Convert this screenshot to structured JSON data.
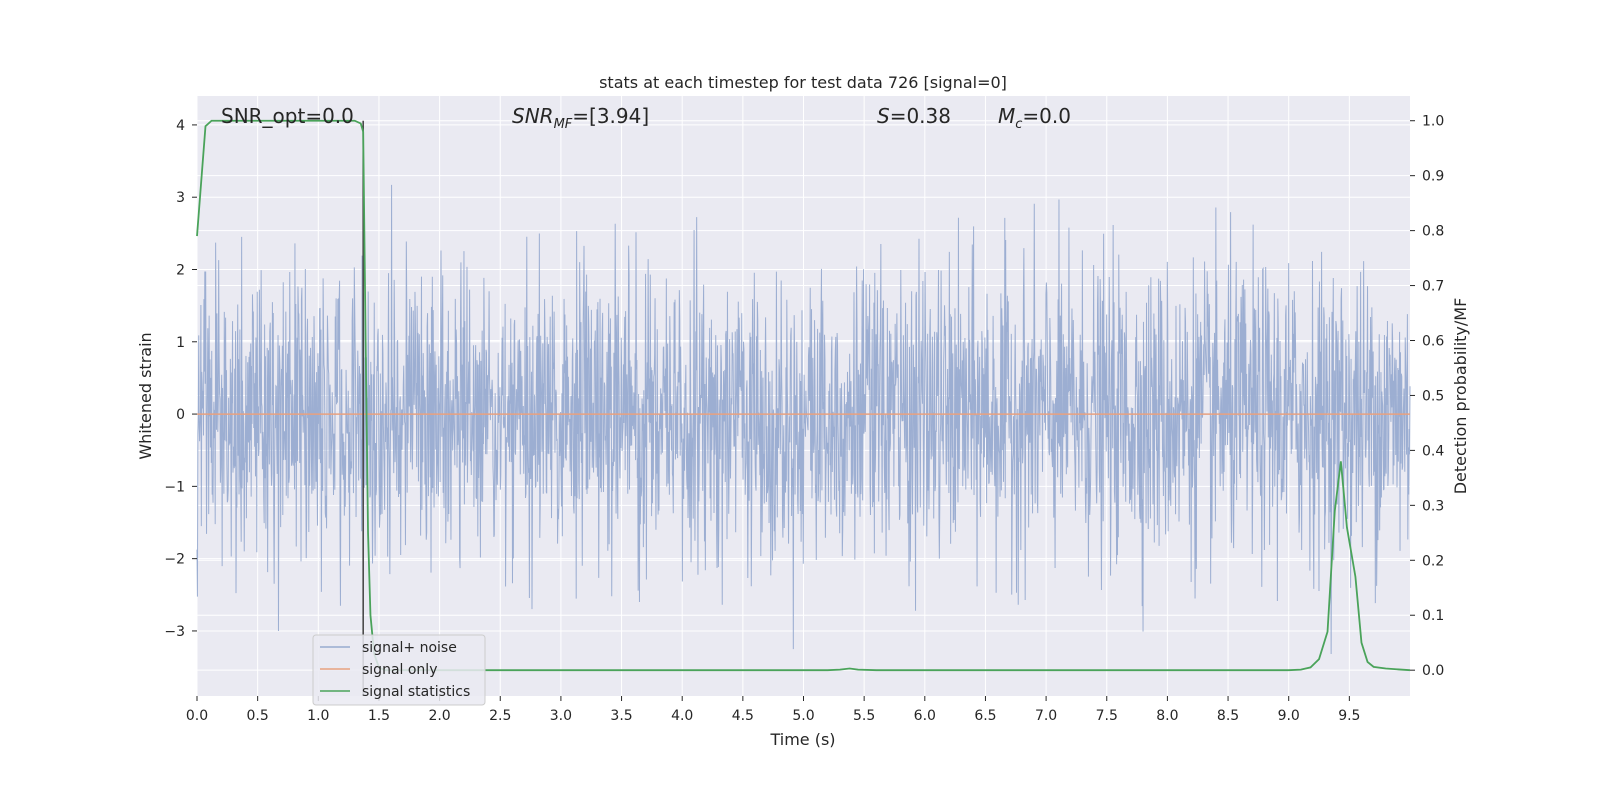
{
  "chart_data": {
    "type": "line",
    "title": "stats at each timestep for test data 726 [signal=0]",
    "xlabel": "Time (s)",
    "ylabel": "Whitened strain",
    "y2label": "Detection probability/MF",
    "xlim": [
      0.0,
      10.0
    ],
    "ylim": [
      -3.9,
      4.4
    ],
    "y2lim": [
      -0.047,
      1.045
    ],
    "xticks": [
      "0.0",
      "0.5",
      "1.0",
      "1.5",
      "2.0",
      "2.5",
      "3.0",
      "3.5",
      "4.0",
      "4.5",
      "5.0",
      "5.5",
      "6.0",
      "6.5",
      "7.0",
      "7.5",
      "8.0",
      "8.5",
      "9.0",
      "9.5"
    ],
    "yticks": [
      "4",
      "3",
      "2",
      "1",
      "0",
      "−1",
      "−2",
      "−3"
    ],
    "y2ticks": [
      "1.0",
      "0.9",
      "0.8",
      "0.7",
      "0.6",
      "0.5",
      "0.4",
      "0.3",
      "0.2",
      "0.1",
      "0.0"
    ],
    "grid": true,
    "legend_position": "lower-left",
    "vline_x": 1.37,
    "annotations": {
      "snr_opt": "SNR_opt=0.0",
      "snr_mf": "=[3.94]",
      "snr_mf_symbol": "SNR",
      "snr_mf_sub": "MF",
      "s_val": "=0.38",
      "s_symbol": "S",
      "mc_val": "=0.0",
      "mc_symbol": "M",
      "mc_sub": "c"
    },
    "series": [
      {
        "name": "signal+ noise",
        "color": "#98abd0",
        "style": "noise",
        "sigma": 1.0,
        "range": [
          -3.5,
          4.0
        ]
      },
      {
        "name": "signal only",
        "color": "#e8a17f",
        "values_x": [
          0.0,
          10.0
        ],
        "values_y": [
          0.0,
          0.0
        ]
      },
      {
        "name": "signal statistics",
        "color": "#4aa35a",
        "axis": "right",
        "x": [
          0.0,
          0.07,
          0.12,
          0.2,
          0.3,
          0.5,
          0.8,
          1.0,
          1.2,
          1.3,
          1.35,
          1.37,
          1.39,
          1.41,
          1.43,
          1.46,
          1.5,
          1.55,
          1.7,
          2.0,
          3.0,
          4.0,
          5.0,
          5.2,
          5.3,
          5.38,
          5.45,
          5.6,
          6.0,
          7.0,
          8.0,
          9.0,
          9.1,
          9.18,
          9.25,
          9.32,
          9.38,
          9.43,
          9.48,
          9.55,
          9.6,
          9.65,
          9.7,
          9.8,
          10.0
        ],
        "y": [
          0.79,
          0.99,
          1.0,
          1.0,
          1.0,
          1.0,
          1.0,
          1.0,
          1.0,
          1.0,
          0.995,
          0.98,
          0.6,
          0.25,
          0.1,
          0.03,
          0.005,
          0.0,
          0.0,
          0.0,
          0.0,
          0.0,
          0.0,
          0.0,
          0.001,
          0.003,
          0.001,
          0.0,
          0.0,
          0.0,
          0.0,
          0.0,
          0.001,
          0.005,
          0.02,
          0.07,
          0.29,
          0.38,
          0.26,
          0.17,
          0.05,
          0.015,
          0.006,
          0.003,
          0.0
        ]
      }
    ]
  }
}
